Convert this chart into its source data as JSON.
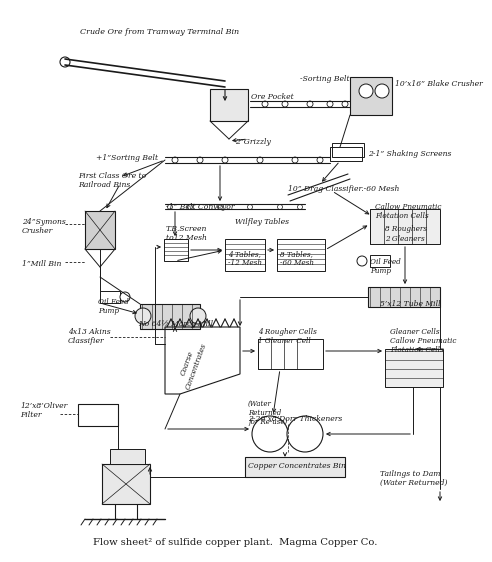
{
  "title": "Flow sheet² of sulfide copper plant.  Magma Copper Co.",
  "bg_color": "#ffffff",
  "line_color": "#1a1a1a",
  "labels": {
    "crude_ore": "Crude Ore from Tramway Terminal Bin",
    "ore_pocket": "Ore Pocket",
    "sorting_belt_top": "-Sorting Belt",
    "grizzly": "2”Grizzly",
    "blake": "10’x16” Blake Crusher",
    "sorting_belt2": "+1”Sorting Belt",
    "shaking_screens": "2-1” Shaking Screens",
    "first_class": "First Class Ore to\nRailroad Bins",
    "drag_classifier": "10” Drag Classifier.-60 Mesh",
    "symons": "24”Symons\nCrusher",
    "mill_bin": "1”Mill Bin",
    "tb_screen": "T.B.Screen\nto12 Mesh",
    "belt_conveyor": "-1” Belt Conveyor",
    "wilfley": "Wilfley Tables",
    "tables4": "4 Tables,\n-12 Mesh",
    "tables8": "8 Tables,\n-60 Mesh",
    "callow_top": "Callow Pneumatic\nFlotation Cells",
    "roughers": "8 Roughers",
    "gleaners2": "2 Gleaners",
    "oil_feed_left": "Oil Feed\nPump",
    "oil_feed_right": "Oil Feed\nPump",
    "marcy": "No 64½ Marcy Mill",
    "tube_mill": "5’x12 Tube Mill",
    "akins": "4x13 Akins\nClassifier",
    "rougher_cells": "4 Rougher Cells\n1 Gleaner Cell",
    "gleaner_cells": "Gleaner Cells\nCallow Pneumatic\nFlotation Cells",
    "coarse_conc": "Coarse\nConcentrates",
    "water_returned": "(Water\nReturned\nfor Re-use)",
    "dorr": "2-20’x8’Dorr Thickeners",
    "copper_bin": "Copper Concentrates Bin",
    "oliver": "12’x8’Oliver\nFilter",
    "tailings": "Tailings to Dam\n(Water Returned)"
  }
}
